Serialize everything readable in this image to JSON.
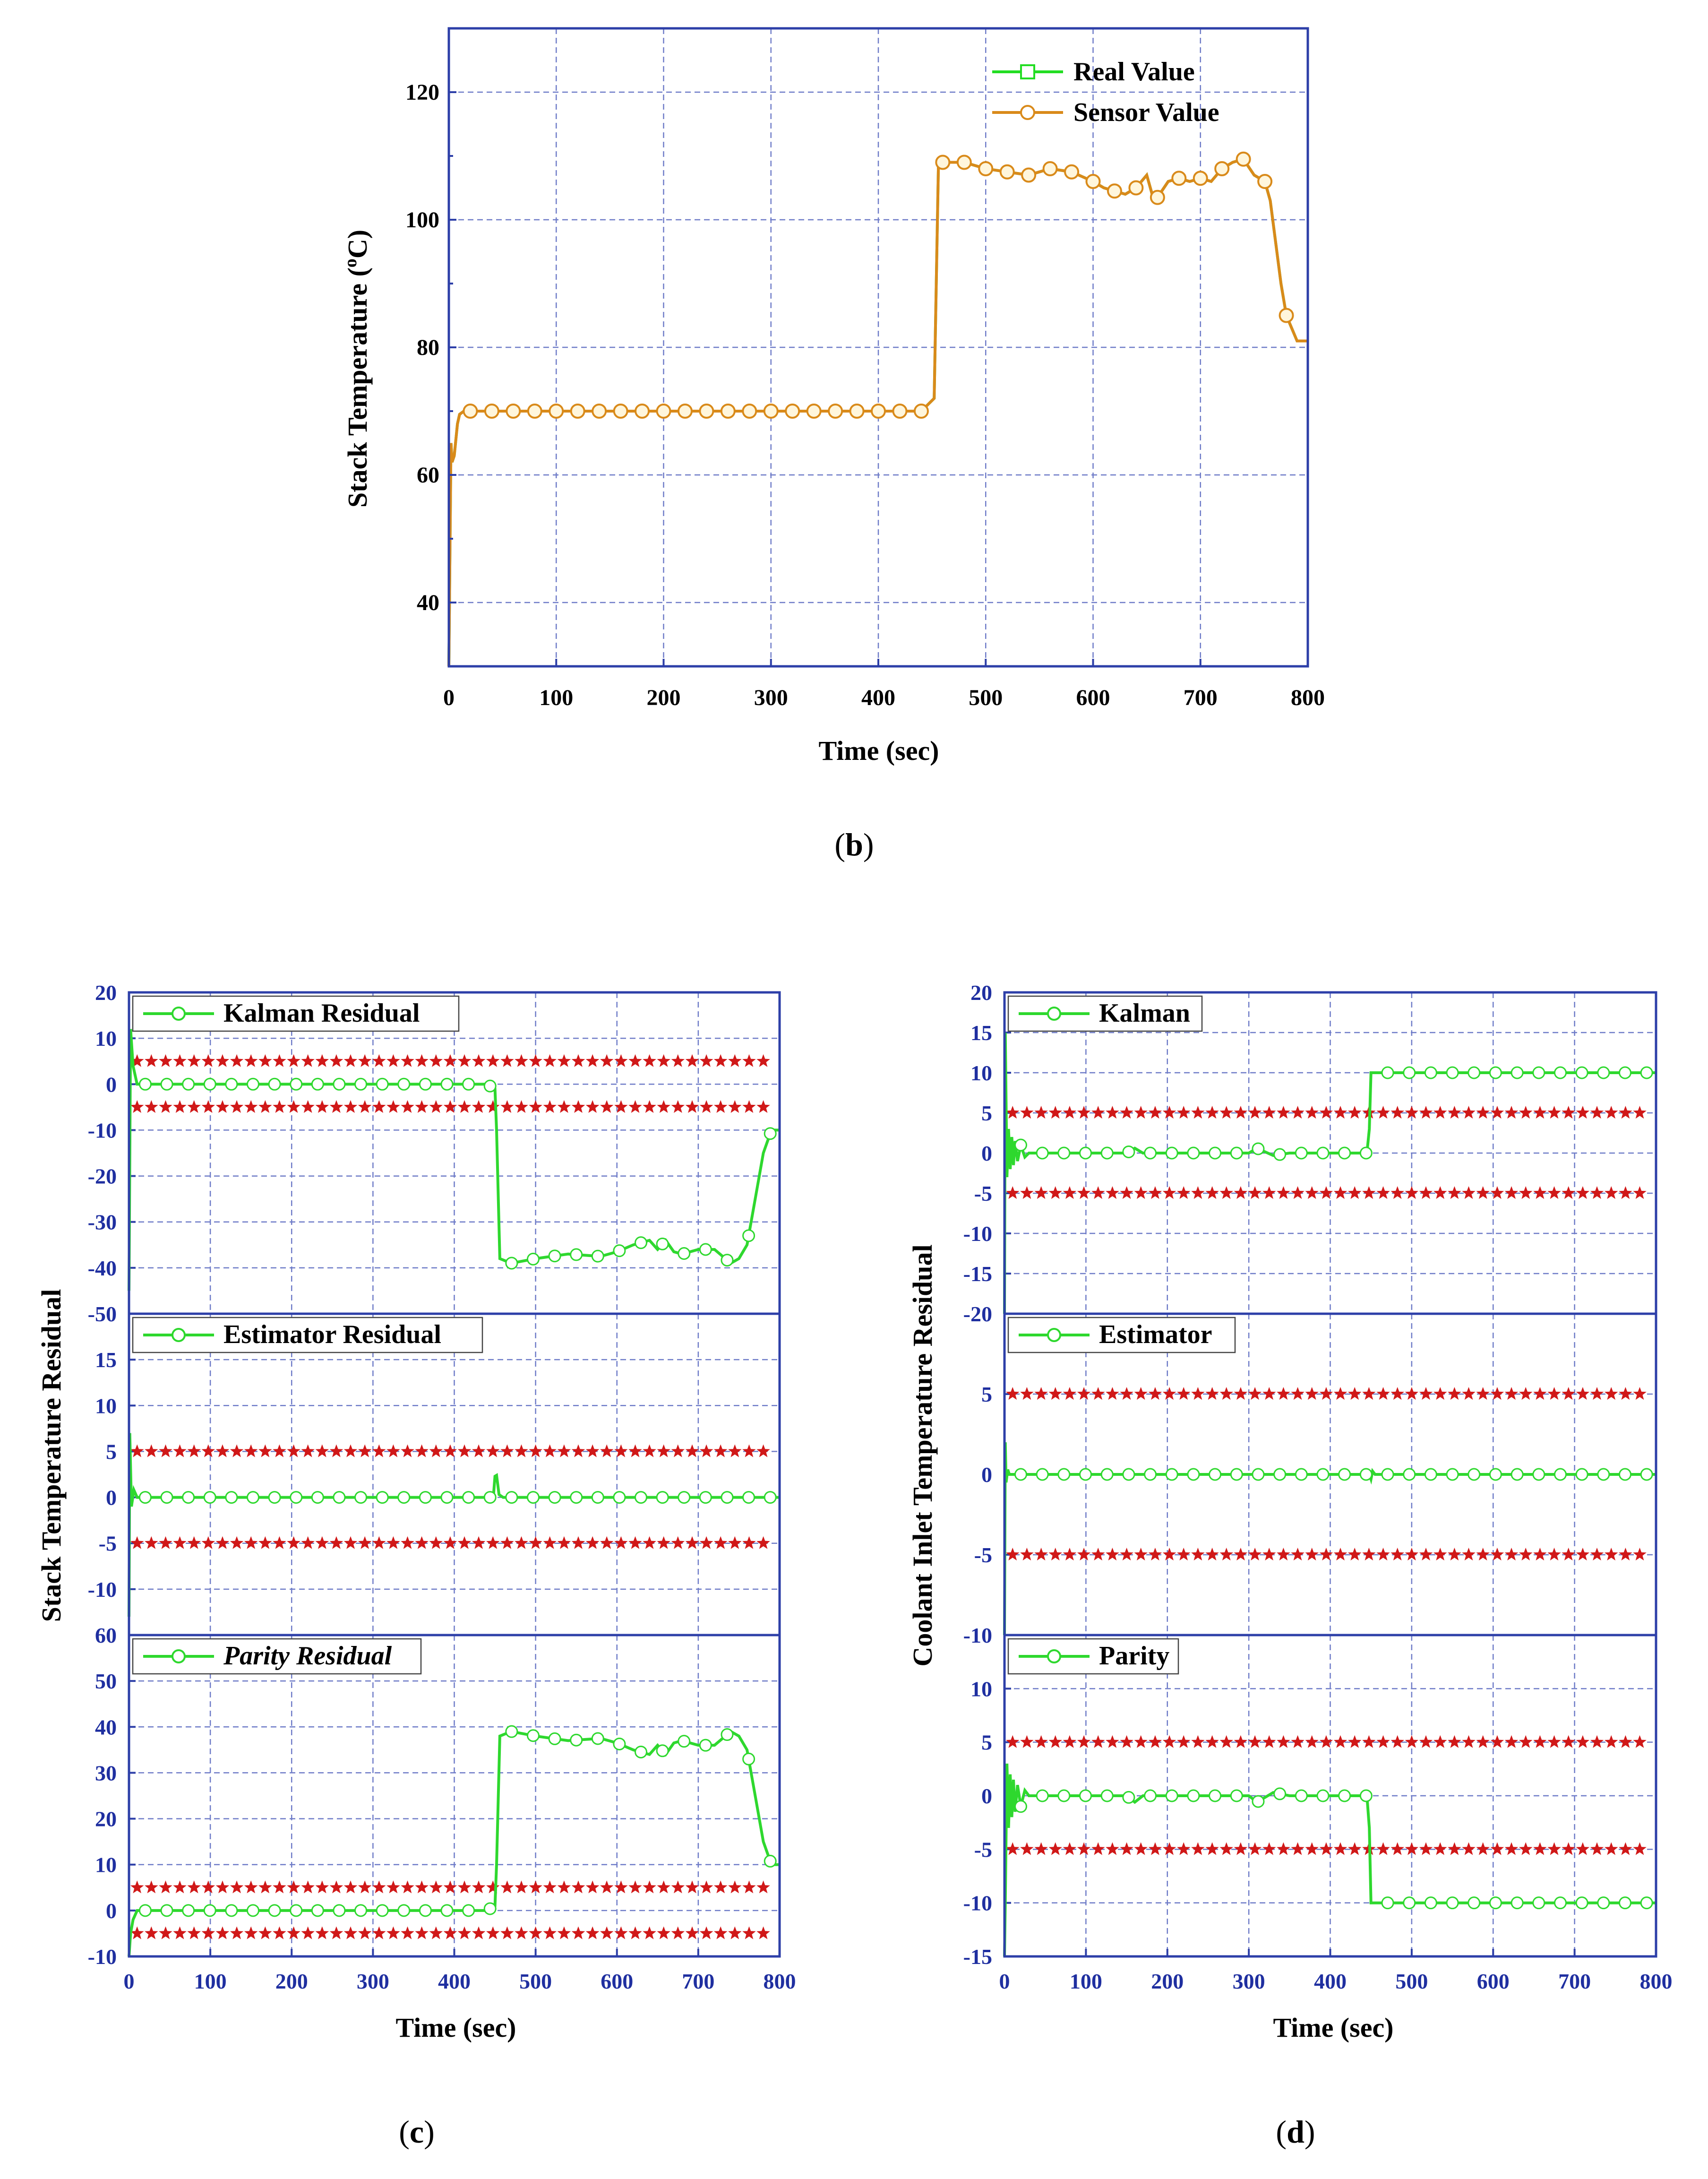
{
  "figure": {
    "captions": {
      "b": "b",
      "c": "c",
      "d": "d"
    }
  },
  "colors": {
    "frame": "#2d3fa8",
    "tick_text": "#1f2fa0",
    "grid": "#6f7cc8",
    "real": "#22dd22",
    "sensor": "#d98a1a",
    "marker_sensor_fill": "#fff6dc",
    "residual": "#2ed82e",
    "threshold": "#d01818"
  },
  "chart_data": [
    {
      "id": "b",
      "type": "line",
      "xlabel": "Time (sec)",
      "ylabel_main": "Stack Temperature (",
      "ylabel_sup": "o",
      "ylabel_end": "C)",
      "xlim": [
        0,
        800
      ],
      "ylim": [
        30,
        130
      ],
      "xticks": [
        0,
        100,
        200,
        300,
        400,
        500,
        600,
        700,
        800
      ],
      "yticks": [
        40,
        60,
        80,
        100,
        120
      ],
      "legend_position": "top-right",
      "series": [
        {
          "name": "Real Value",
          "marker": "square",
          "x": [
            0,
            2,
            3,
            5,
            8,
            10,
            14,
            20,
            60,
            150,
            250,
            350,
            440,
            452,
            456,
            470,
            480,
            500,
            520,
            540,
            560,
            580,
            600,
            610,
            620,
            630,
            640,
            650,
            655,
            660,
            670,
            680,
            690,
            700,
            710,
            720,
            730,
            740,
            750,
            760,
            765,
            775,
            780,
            790,
            800
          ],
          "y": [
            30,
            65,
            62,
            63,
            68,
            69.5,
            70,
            70,
            70,
            70,
            70,
            70,
            70,
            72,
            109,
            109,
            109,
            108,
            107.5,
            107,
            108,
            107.5,
            106,
            105,
            104.5,
            104,
            105,
            107,
            104,
            103.5,
            106,
            106.5,
            106,
            106.5,
            106,
            108,
            109,
            109.5,
            107,
            106,
            103,
            90,
            85,
            81,
            81
          ]
        },
        {
          "name": "Sensor Value",
          "marker": "circle",
          "x": [
            0,
            2,
            3,
            5,
            8,
            10,
            14,
            20,
            60,
            150,
            250,
            350,
            440,
            452,
            456,
            470,
            480,
            500,
            520,
            540,
            560,
            580,
            600,
            610,
            620,
            630,
            640,
            650,
            655,
            660,
            670,
            680,
            690,
            700,
            710,
            720,
            730,
            740,
            750,
            760,
            765,
            775,
            780,
            790,
            800
          ],
          "y": [
            30,
            65,
            62,
            63,
            68,
            69.5,
            70,
            70,
            70,
            70,
            70,
            70,
            70,
            72,
            109,
            109,
            109,
            108,
            107.5,
            107,
            108,
            107.5,
            106,
            105,
            104.5,
            104,
            105,
            107,
            104,
            103.5,
            106,
            106.5,
            106,
            106.5,
            106,
            108,
            109,
            109.5,
            107,
            106,
            103,
            90,
            85,
            81,
            81
          ]
        }
      ]
    },
    {
      "id": "c",
      "type": "line",
      "xlabel": "Time (sec)",
      "ylabel": "Stack Temperature Residual",
      "xlim": [
        0,
        800
      ],
      "xticks": [
        0,
        100,
        200,
        300,
        400,
        500,
        600,
        700,
        800
      ],
      "panels": [
        {
          "name": "Kalman Residual",
          "italic": false,
          "ylim": [
            -50,
            20
          ],
          "yticks": [
            20,
            10,
            0,
            -10,
            -20,
            -30,
            -40,
            -50
          ],
          "thresholds": [
            5,
            -5
          ],
          "x": [
            0,
            2,
            5,
            10,
            20,
            100,
            200,
            300,
            440,
            450,
            452,
            456,
            470,
            500,
            540,
            580,
            600,
            620,
            640,
            650,
            660,
            670,
            680,
            700,
            720,
            740,
            750,
            760,
            770,
            780,
            790,
            800
          ],
          "y": [
            -45,
            12,
            4,
            0,
            0,
            0,
            0,
            0,
            0,
            -1,
            -10,
            -38,
            -39,
            -38,
            -37,
            -37.5,
            -36.5,
            -35,
            -34,
            -36,
            -34,
            -36.5,
            -37,
            -36,
            -36,
            -39,
            -38,
            -35,
            -25,
            -15,
            -10,
            -10
          ]
        },
        {
          "name": "Estimator Residual",
          "italic": false,
          "ylim": [
            -15,
            20
          ],
          "yticks": [
            15,
            10,
            5,
            0,
            -5,
            -10
          ],
          "thresholds": [
            5,
            -5
          ],
          "x": [
            0,
            1,
            3,
            6,
            10,
            20,
            100,
            200,
            300,
            440,
            448,
            450,
            452,
            455,
            460,
            500,
            600,
            700,
            800
          ],
          "y": [
            -13,
            7,
            -1,
            0.8,
            0,
            0,
            0,
            0,
            0,
            0,
            0,
            2.3,
            2.4,
            0.3,
            0,
            0,
            0,
            0,
            0
          ]
        },
        {
          "name": "Parity Residual",
          "italic": true,
          "ylim": [
            -10,
            60
          ],
          "yticks": [
            60,
            50,
            40,
            30,
            20,
            10,
            0,
            -10
          ],
          "thresholds": [
            5,
            -5
          ],
          "x": [
            0,
            2,
            5,
            10,
            20,
            100,
            200,
            300,
            440,
            450,
            452,
            456,
            470,
            500,
            540,
            580,
            600,
            620,
            640,
            650,
            660,
            670,
            680,
            700,
            720,
            740,
            750,
            760,
            770,
            780,
            790,
            800
          ],
          "y": [
            -10,
            -5,
            -2,
            0,
            0,
            0,
            0,
            0,
            0,
            1,
            10,
            38,
            39,
            38,
            37,
            37.5,
            36.5,
            35,
            34,
            36,
            34,
            36.5,
            37,
            36,
            36,
            39,
            38,
            35,
            25,
            15,
            10,
            10
          ]
        }
      ]
    },
    {
      "id": "d",
      "type": "line",
      "xlabel": "Time (sec)",
      "ylabel": "Coolant Inlet Temperature Residual",
      "xlim": [
        0,
        800
      ],
      "xticks": [
        0,
        100,
        200,
        300,
        400,
        500,
        600,
        700,
        800
      ],
      "panels": [
        {
          "name": "Kalman",
          "italic": false,
          "ylim": [
            -20,
            20
          ],
          "yticks": [
            20,
            15,
            10,
            5,
            0,
            -5,
            -10,
            -15,
            -20
          ],
          "thresholds": [
            5,
            -5
          ],
          "x": [
            0,
            1,
            3,
            5,
            7,
            9,
            11,
            13,
            16,
            20,
            25,
            30,
            40,
            100,
            150,
            160,
            170,
            200,
            250,
            300,
            310,
            330,
            350,
            400,
            445,
            448,
            450,
            455,
            500,
            600,
            700,
            800
          ],
          "y": [
            -20,
            15,
            -3,
            3,
            -2,
            2,
            -1.5,
            1.5,
            -1,
            1,
            -0.5,
            0,
            0,
            0,
            0,
            0.6,
            0,
            0,
            0,
            0,
            0.6,
            -0.3,
            0,
            0,
            0,
            3,
            10,
            10,
            10,
            10,
            10,
            10
          ]
        },
        {
          "name": "Estimator",
          "italic": false,
          "ylim": [
            -10,
            10
          ],
          "yticks": [
            5,
            0,
            -5,
            -10
          ],
          "thresholds": [
            5,
            -5
          ],
          "x": [
            0,
            1,
            2,
            4,
            6,
            10,
            100,
            200,
            300,
            445,
            448,
            450,
            452,
            455,
            500,
            600,
            700,
            800
          ],
          "y": [
            -10,
            2,
            -0.5,
            0.3,
            0,
            0,
            0,
            0,
            0,
            0,
            0,
            -0.3,
            0.2,
            0,
            0,
            0,
            0,
            0
          ]
        },
        {
          "name": "Parity",
          "italic": false,
          "ylim": [
            -15,
            15
          ],
          "yticks": [
            10,
            5,
            0,
            -5,
            -10,
            -15
          ],
          "thresholds": [
            5,
            -5
          ],
          "x": [
            0,
            1,
            3,
            5,
            7,
            9,
            11,
            13,
            16,
            20,
            25,
            30,
            40,
            100,
            150,
            160,
            170,
            200,
            250,
            300,
            310,
            330,
            350,
            400,
            445,
            448,
            450,
            455,
            500,
            600,
            700,
            800
          ],
          "y": [
            -15,
            -10,
            3,
            -3,
            2,
            -2,
            1.5,
            -1.5,
            1,
            -1,
            0.5,
            0,
            0,
            0,
            0,
            -0.6,
            0,
            0,
            0,
            0,
            -0.6,
            0.3,
            0,
            0,
            0,
            -3,
            -10,
            -10,
            -10,
            -10,
            -10,
            -10
          ]
        }
      ]
    }
  ]
}
